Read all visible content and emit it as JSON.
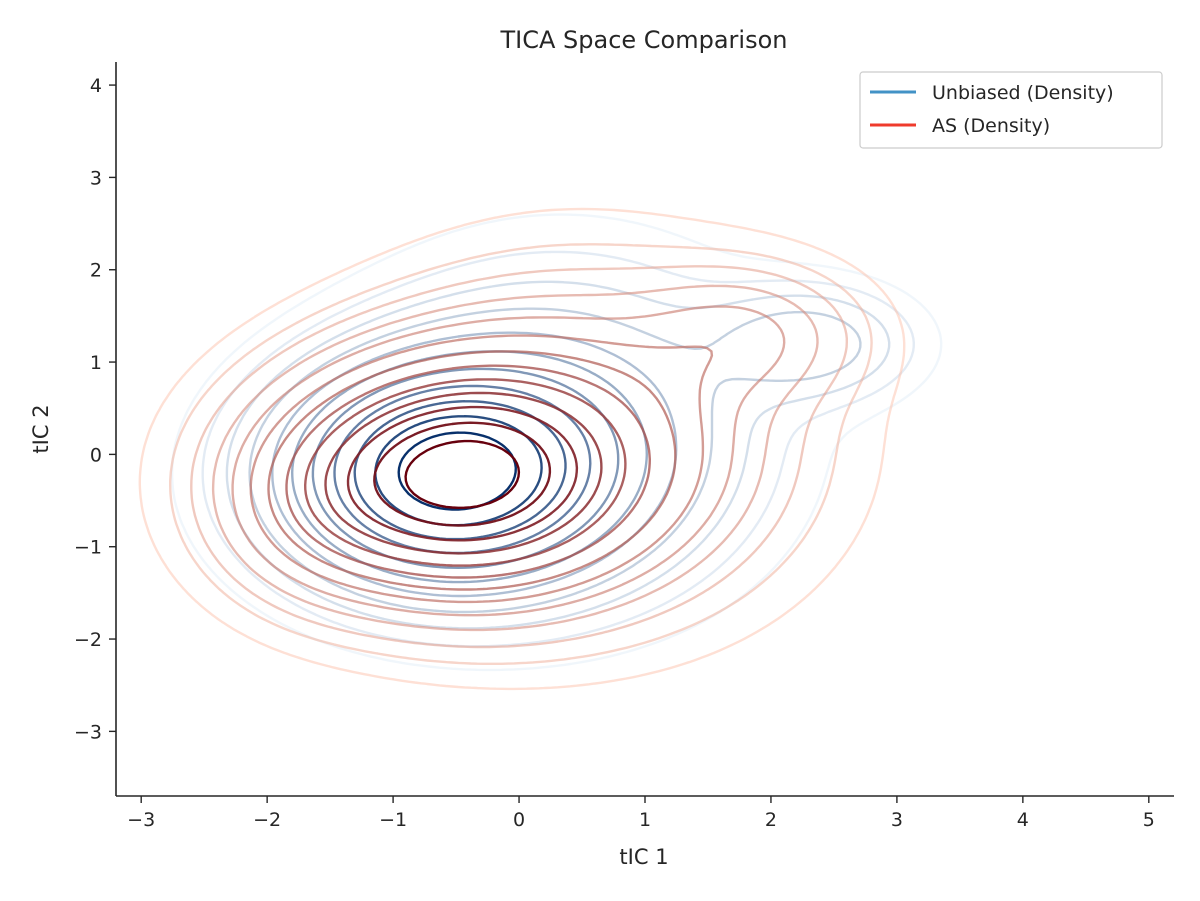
{
  "chart_data": {
    "type": "contour",
    "title": "TICA Space Comparison",
    "xlabel": "tIC 1",
    "ylabel": "tIC 2",
    "xlim": [
      -3.2,
      5.2
    ],
    "ylim": [
      -3.7,
      4.25
    ],
    "xticks": [
      -3,
      -2,
      -1,
      0,
      1,
      2,
      3,
      4,
      5
    ],
    "yticks": [
      -3,
      -2,
      -1,
      0,
      1,
      2,
      3,
      4
    ],
    "grid": false,
    "legend": {
      "placement": "top-right",
      "entries": [
        {
          "label": "Unbiased (Density)",
          "color": "#4292c6"
        },
        {
          "label": "AS (Density)",
          "color": "#ef3b2c"
        }
      ]
    },
    "series": [
      {
        "name": "Unbiased (Density)",
        "colormap": "Blues",
        "color_light": "#deebf7",
        "color_dark": "#08306b",
        "components": [
          {
            "cx": -0.6,
            "cy": -0.22,
            "sx": 0.78,
            "sy": 0.72,
            "w": 1.0
          },
          {
            "cx": 0.35,
            "cy": 0.25,
            "sx": 0.95,
            "sy": 1.05,
            "w": 0.28
          },
          {
            "cx": 2.3,
            "cy": 1.2,
            "sx": 0.5,
            "sy": 0.38,
            "w": 0.2
          }
        ],
        "levels": [
          0.02,
          0.045,
          0.08,
          0.13,
          0.2,
          0.28,
          0.38,
          0.5,
          0.62,
          0.74,
          0.86
        ]
      },
      {
        "name": "AS (Density)",
        "colormap": "Reds",
        "color_light": "#fcbba1",
        "color_dark": "#67000d",
        "components": [
          {
            "cx": -0.55,
            "cy": -0.25,
            "sx": 0.85,
            "sy": 0.75,
            "w": 1.0
          },
          {
            "cx": 0.5,
            "cy": 0.15,
            "sx": 1.0,
            "sy": 1.05,
            "w": 0.3
          },
          {
            "cx": 1.8,
            "cy": 1.3,
            "sx": 0.55,
            "sy": 0.45,
            "w": 0.15
          },
          {
            "cx": -1.6,
            "cy": -0.6,
            "sx": 0.5,
            "sy": 0.6,
            "w": 0.12
          }
        ],
        "levels": [
          0.015,
          0.035,
          0.06,
          0.1,
          0.15,
          0.21,
          0.28,
          0.36,
          0.45,
          0.55,
          0.66,
          0.78,
          0.9
        ]
      }
    ]
  }
}
